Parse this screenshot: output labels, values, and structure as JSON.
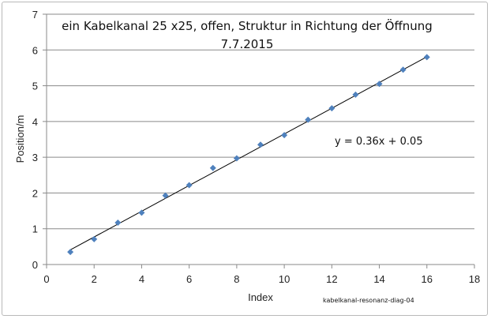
{
  "chart_data": {
    "type": "scatter",
    "title": "ein Kabelkanal 25 x25, offen, Struktur in Richtung der Öffnung",
    "subtitle": "7.7.2015",
    "xlabel": "Index",
    "ylabel": "Position/m",
    "xlim": [
      0,
      18
    ],
    "ylim": [
      0,
      7
    ],
    "xticks": [
      0,
      2,
      4,
      6,
      8,
      10,
      12,
      14,
      16,
      18
    ],
    "yticks": [
      0,
      1,
      2,
      3,
      4,
      5,
      6,
      7
    ],
    "grid": "horizontal",
    "series": [
      {
        "marker": "diamond",
        "color": "#4f81bd",
        "x": [
          1,
          2,
          3,
          4,
          5,
          6,
          7,
          8,
          9,
          10,
          11,
          12,
          13,
          14,
          15,
          16
        ],
        "y": [
          0.35,
          0.71,
          1.17,
          1.45,
          1.93,
          2.22,
          2.7,
          2.97,
          3.35,
          3.62,
          4.05,
          4.37,
          4.75,
          5.05,
          5.45,
          5.8
        ]
      }
    ],
    "trendline": {
      "type": "linear",
      "slope": 0.36,
      "intercept": 0.05,
      "x_range": [
        1,
        16
      ],
      "color": "#000000",
      "equation_label": "y = 0.36x + 0.05"
    },
    "annotation": "kabelkanal-resonanz-diag-04"
  }
}
